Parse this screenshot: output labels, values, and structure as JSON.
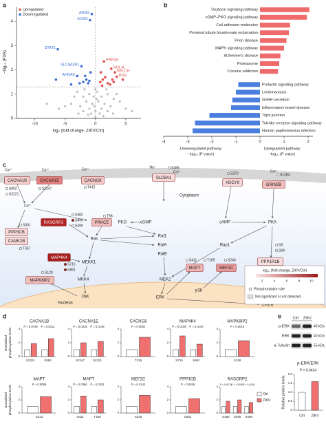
{
  "panel_labels": [
    "a",
    "b",
    "c",
    "d",
    "e"
  ],
  "chart_data": [
    {
      "type": "scatter",
      "x_label": "log₂ (fold change, ZIKV/Ctrl)",
      "y_label": "−log₁₀ (FDR)",
      "xlim": [
        -13,
        7.5
      ],
      "ylim": [
        0,
        4.6
      ],
      "xticks": [
        -10,
        -5,
        0,
        5
      ],
      "yticks": [
        0,
        1,
        2,
        3,
        4
      ],
      "legend": "upper left",
      "hline": 1.3,
      "vline": 0,
      "series": [
        {
          "name": "Upregulated",
          "color": "#e0504d",
          "x": [
            1.4,
            2.6,
            3.2,
            3.5,
            0.8,
            1.2,
            2.0,
            1.6,
            2.4,
            0.9,
            3.0,
            4.5,
            1.1,
            2.8
          ],
          "values": [
            2.35,
            2.05,
            1.9,
            1.72,
            1.5,
            1.6,
            1.45,
            1.7,
            1.4,
            1.9,
            1.5,
            1.6,
            1.35,
            1.6
          ],
          "labels": [
            "PRR36",
            "NOL4L",
            "RELCH",
            "BSN",
            null,
            null,
            null,
            null,
            null,
            null,
            null,
            null,
            null,
            null
          ]
        },
        {
          "name": "Downregulated",
          "color": "#3a6fd6",
          "x": [
            -0.6,
            -0.9,
            -6.2,
            -2.3,
            -3.0,
            -1.5,
            -2.0,
            -1.2,
            -4.0,
            -0.8,
            -1.7,
            -2.6,
            -1.0,
            -6.5
          ],
          "values": [
            4.3,
            4.05,
            2.85,
            2.15,
            1.75,
            1.6,
            1.5,
            1.45,
            1.4,
            1.9,
            1.75,
            1.45,
            1.55,
            1.6
          ],
          "labels": [
            "AHSG",
            "AHSG",
            "STAT1",
            "SLC9A3R1",
            "AHNAK",
            null,
            null,
            null,
            null,
            null,
            null,
            null,
            null,
            null
          ]
        }
      ],
      "other": {
        "color": "#bdbdbd",
        "x": [
          -3,
          -2,
          -1,
          0,
          1,
          2,
          3,
          -1.5,
          -0.5,
          0.5,
          1.5,
          -2.5,
          2.5,
          -4,
          4,
          -1,
          0,
          1,
          -2,
          2,
          0.3,
          -0.3,
          -3.5,
          3.5,
          -5,
          5,
          -0.7,
          0.7,
          -1.8,
          1.8,
          -0.2,
          0.2,
          -6,
          -8,
          6,
          -1.2,
          1.3,
          0,
          -2.8,
          2.9
        ],
        "values": [
          1.1,
          0.9,
          1.0,
          1.2,
          0.9,
          1.0,
          0.8,
          0.7,
          0.6,
          0.7,
          0.6,
          0.5,
          0.5,
          0.6,
          0.7,
          0.4,
          0.3,
          0.4,
          0.3,
          0.3,
          1.1,
          0.9,
          0.9,
          1.0,
          0.5,
          0.4,
          0.2,
          0.2,
          1.2,
          1.2,
          0.5,
          0.8,
          0.4,
          0.6,
          0.3,
          0.15,
          0.1,
          0.05,
          0.2,
          0.2
        ]
      }
    },
    {
      "type": "barh",
      "categories": [
        "Oxytocin signaling pathway",
        "cGMP–PKG signaling pathway",
        "Cell adhesion molecules",
        "Proximal tubule bicarbonate reclamation",
        "Prion disease",
        "MAPK signaling pathway",
        "Alzheimer's disease",
        "Proteasome",
        "Cocaine addiction",
        "Prolactin signaling pathway",
        "Leishmaniasis",
        "GnRH secretion",
        "Inflammatory bowel disease",
        "Tight junction",
        "Toll-like receptor signaling pathway",
        "Human papillomavirus infection"
      ],
      "values": [
        2.05,
        1.95,
        1.25,
        1.2,
        1.1,
        1.0,
        0.85,
        0.8,
        0.75,
        -0.9,
        -1.0,
        -1.15,
        -1.2,
        -2.1,
        -2.7,
        -2.8
      ],
      "colors": {
        "positive": "#ef6a6a",
        "negative": "#4a7fe0"
      },
      "xlim": [
        -4,
        2.2
      ],
      "xticks": [
        -4,
        -3,
        -2,
        -1,
        0,
        1,
        2
      ],
      "x_labels": [
        [
          "Downregulated pathway",
          "−log₁₀ (P value)"
        ],
        [
          "Upregulated pathway",
          "−log₁₀ (P value)"
        ]
      ]
    },
    {
      "type": "grouped_bars",
      "y_label": "Normalized phosphorylation levels",
      "ylim": [
        0,
        4
      ],
      "yticks": [
        0,
        2,
        4
      ],
      "series": [
        {
          "name": "Ctrl",
          "color": "#ffffff"
        },
        {
          "name": "ZIKV",
          "color": "#f07070"
        }
      ],
      "panels": [
        {
          "title": "CACNA1B",
          "categories": [
            "S2221",
            "S892"
          ],
          "values": [
            [
              1,
              1
            ],
            [
              1.9,
              2.6
            ]
          ],
          "p_labels": [
            "P = 0.0749",
            "P = 0.0113"
          ]
        },
        {
          "title": "CACNA1E",
          "categories": [
            "S2247",
            "S2221"
          ],
          "values": [
            [
              1,
              1
            ],
            [
              2.0,
              2.2
            ]
          ],
          "p_labels": [
            "P = 0.0318",
            "P = 0.0149"
          ]
        },
        {
          "title": "CACNG8",
          "categories": [
            "T415"
          ],
          "values": [
            [
              1
            ],
            [
              2.8
            ]
          ],
          "p_labels": [
            "P = 0.0082"
          ]
        },
        {
          "title": "MAP4K4",
          "categories": [
            "S715",
            "S881"
          ],
          "values": [
            [
              1,
              1
            ],
            [
              3.0,
              1.8
            ]
          ],
          "p_labels": [
            "P = 0.0199",
            "P = 0.0140"
          ]
        },
        {
          "title": "MAPK8IP2",
          "categories": [
            "S128"
          ],
          "values": [
            [
              1
            ],
            [
              2.3
            ]
          ],
          "p_labels": [
            "P = 0.0018"
          ]
        },
        {
          "title": "MAPT",
          "categories": [
            "S313"
          ],
          "values": [
            [
              1
            ],
            [
              2.5
            ]
          ],
          "p_labels": [
            "P = 0.0089"
          ]
        },
        {
          "title": "MAPT",
          "categories": [
            "S411",
            "T165"
          ],
          "values": [
            [
              1,
              1
            ],
            [
              2.6,
              2.0
            ]
          ],
          "p_labels": [
            "P = 0.0094",
            "P = 0.0201"
          ]
        },
        {
          "title": "MEF2C",
          "categories": [
            "S240"
          ],
          "values": [
            [
              1
            ],
            [
              2.7
            ]
          ],
          "p_labels": [
            "P = 0.0142"
          ]
        },
        {
          "title": "PPP3CB",
          "categories": [
            "S301"
          ],
          "values": [
            [
              1
            ],
            [
              2.2
            ]
          ],
          "p_labels": [
            "P = 0.0036"
          ]
        },
        {
          "title": "RASGRP2",
          "categories": [
            "S482",
            "S490",
            "S499"
          ],
          "values": [
            [
              1,
              1,
              1
            ],
            [
              1.8,
              2.0,
              1.6
            ]
          ],
          "p_labels": [
            "P = 0.0271",
            "P = 0.0030",
            "P = 0.0126"
          ]
        }
      ]
    },
    {
      "type": "bar",
      "title": "p-ERK/ERK",
      "y_label": "Relative protein levels",
      "categories": [
        "Ctrl",
        "ZIKV"
      ],
      "values": [
        1.0,
        1.6
      ],
      "colors": [
        "#ffffff",
        "#f07070"
      ],
      "ylim": [
        0,
        2
      ],
      "yticks": [
        0,
        0.5,
        {
          "value": 1,
          "label": "1.0"
        },
        1.5,
        {
          "value": 2,
          "label": "2.0"
        }
      ],
      "p_label": "P = 0.0434"
    }
  ],
  "diagram": {
    "nodes": [
      {
        "label": "CACNA1B",
        "fill": "#f5cfcf"
      },
      {
        "label": "CACNA1E",
        "fill": "#e47f7f"
      },
      {
        "label": "CACNG8",
        "fill": "#f3c6c6"
      },
      {
        "label": "SLC8A1",
        "fill": "#f7d9d9"
      },
      {
        "label": "ADCY9",
        "fill": "#f7d9d9"
      },
      {
        "label": "GRIN2B",
        "fill": "#f1bcbc"
      },
      {
        "label": "PRKCE",
        "fill": "#f1bcbc"
      },
      {
        "label": "RASGRP2",
        "fill": "#b02424"
      },
      {
        "label": "PPP3CB",
        "fill": "#f7d9d9"
      },
      {
        "label": "CAMK2B",
        "fill": "#f7d9d9"
      },
      {
        "label": "MAP4K4",
        "fill": "#a51d1d"
      },
      {
        "label": "MAPT",
        "fill": "#eeb1b1"
      },
      {
        "label": "MEF2C",
        "fill": "#e99a9a"
      },
      {
        "label": "MAPK8IP2",
        "fill": "#f1bcbc"
      },
      {
        "label": "PPP1R1B",
        "fill": "#f7dede"
      },
      {
        "label": "CREBBP",
        "fill": "#f5cfcf"
      }
    ],
    "plain": [
      "PKG",
      "cGMP",
      "Ras",
      "Raf1",
      "RalA",
      "RalB",
      "MEKK1",
      "MKK4",
      "JNK",
      "MEK2",
      "p38",
      "ERK",
      "cAMP",
      "PKA",
      "Rap1",
      "CREB"
    ],
    "sites": [
      {
        "label": "S892",
        "fill": "#ffffff"
      },
      {
        "label": "S2221",
        "fill": "#ffffff"
      },
      {
        "label": "S2247",
        "fill": "#ffffff"
      },
      {
        "label": "T415",
        "fill": "#ffffff"
      },
      {
        "label": "S389",
        "fill": "#ffffff"
      },
      {
        "label": "S373",
        "fill": "#ffffff"
      },
      {
        "label": "S1284",
        "fill": "#ffffff"
      },
      {
        "label": "S482",
        "fill": "#ffffff"
      },
      {
        "label": "S490",
        "fill": "#a01818"
      },
      {
        "label": "S499",
        "fill": "#ffffff"
      },
      {
        "label": "T98",
        "fill": "#ffffff"
      },
      {
        "label": "S301",
        "fill": "#ffffff"
      },
      {
        "label": "T357",
        "fill": "#ffffff"
      },
      {
        "label": "S715",
        "fill": "#a01818"
      },
      {
        "label": "S881",
        "fill": "#a01818"
      },
      {
        "label": "S128",
        "fill": "#ffffff"
      },
      {
        "label": "S411",
        "fill": "#ffffff"
      },
      {
        "label": "T165",
        "fill": "#ffffff"
      },
      {
        "label": "S240",
        "fill": "#ffffff"
      },
      {
        "label": "S9",
        "fill": "#ffffff"
      },
      {
        "label": "S94",
        "fill": "#ffffff"
      },
      {
        "label": "S2363",
        "fill": "#ffffff"
      }
    ],
    "ions": [
      "Ca²⁺",
      "Ca²⁺",
      "Ca²⁺",
      "Na⁺",
      "Ca²⁺",
      "Ca²⁺",
      "Ca²⁺"
    ],
    "compartments": [
      "Cytoplasm",
      "Nucleus"
    ],
    "legend": {
      "title": "log₁₀ (fold change, ZIKV/Ctrl)",
      "colors": [
        "#fbe3e3",
        "#a01818"
      ],
      "lim": [
        1,
        11
      ],
      "ticks": [
        2,
        4,
        6,
        8,
        10
      ],
      "items": [
        "Phosphorylation site",
        "Not significant or not detected"
      ]
    }
  },
  "blot": {
    "lanes": [
      "Ctrl",
      "ZIKV"
    ],
    "rows": [
      {
        "label": "p-ERK",
        "size": "40 kDa"
      },
      {
        "label": "ERK",
        "size": "40 kDa"
      },
      {
        "label": "α-Tubulin",
        "size": "55 kDa"
      }
    ]
  }
}
